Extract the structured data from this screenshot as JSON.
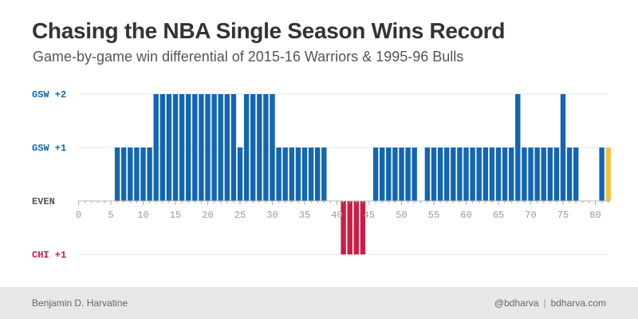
{
  "header": {
    "title": "Chasing the NBA Single Season Wins Record",
    "subtitle": "Game-by-game win differential of 2015-16 Warriors & 1995-96 Bulls"
  },
  "footer": {
    "author": "Benjamin D. Harvatine",
    "handle": "@bdharva",
    "separator": "|",
    "site": "bdharva.com"
  },
  "colors": {
    "gsw": "#1266b3",
    "chi": "#cc1c45",
    "current": "#f9be3c",
    "even": "#555555",
    "grid": "#e6e6e6"
  },
  "chart_data": {
    "type": "bar",
    "title": "Chasing the NBA Single Season Wins Record",
    "subtitle": "Game-by-game win differential of 2015-16 Warriors & 1995-96 Bulls",
    "xlabel": "",
    "ylabel": "",
    "x_ticks": [
      0,
      5,
      10,
      15,
      20,
      25,
      30,
      35,
      40,
      45,
      50,
      55,
      60,
      65,
      70,
      75,
      80
    ],
    "xlim": [
      0,
      82
    ],
    "y_ticks": [
      {
        "value": 2,
        "label": "GSW +2",
        "team": "gsw"
      },
      {
        "value": 1,
        "label": "GSW +1",
        "team": "gsw"
      },
      {
        "value": 0,
        "label": "EVEN",
        "team": "even"
      },
      {
        "value": -1,
        "label": "CHI +1",
        "team": "chi"
      }
    ],
    "ylim": [
      -1,
      2
    ],
    "grid": true,
    "highlight_game": 82,
    "games": [
      1,
      2,
      3,
      4,
      5,
      6,
      7,
      8,
      9,
      10,
      11,
      12,
      13,
      14,
      15,
      16,
      17,
      18,
      19,
      20,
      21,
      22,
      23,
      24,
      25,
      26,
      27,
      28,
      29,
      30,
      31,
      32,
      33,
      34,
      35,
      36,
      37,
      38,
      39,
      40,
      41,
      42,
      43,
      44,
      45,
      46,
      47,
      48,
      49,
      50,
      51,
      52,
      53,
      54,
      55,
      56,
      57,
      58,
      59,
      60,
      61,
      62,
      63,
      64,
      65,
      66,
      67,
      68,
      69,
      70,
      71,
      72,
      73,
      74,
      75,
      76,
      77,
      78,
      79,
      80,
      81,
      82
    ],
    "values": [
      0,
      0,
      0,
      0,
      0,
      1,
      1,
      1,
      1,
      1,
      1,
      2,
      2,
      2,
      2,
      2,
      2,
      2,
      2,
      2,
      2,
      2,
      2,
      2,
      1,
      2,
      2,
      2,
      2,
      2,
      1,
      1,
      1,
      1,
      1,
      1,
      1,
      1,
      0,
      0,
      -1,
      -1,
      -1,
      -1,
      0,
      1,
      1,
      1,
      1,
      1,
      1,
      1,
      0,
      1,
      1,
      1,
      1,
      1,
      1,
      1,
      1,
      1,
      1,
      1,
      1,
      1,
      1,
      2,
      1,
      1,
      1,
      1,
      1,
      1,
      2,
      1,
      1,
      0,
      0,
      0,
      1,
      1
    ]
  }
}
